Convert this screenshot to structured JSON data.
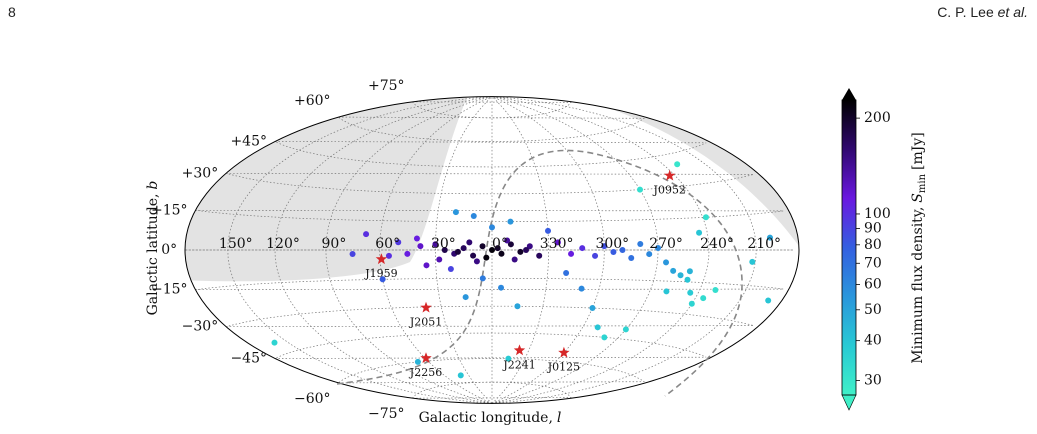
{
  "header": {
    "page": "8",
    "author": "C. P. Lee",
    "author_suffix": "et al."
  },
  "chart_data": {
    "type": "scatter",
    "projection": "hammer",
    "xlabel": "Galactic longitude,",
    "xlabel_symbol": "l",
    "ylabel": "Galactic latitude,",
    "ylabel_symbol": "b",
    "grid": true,
    "xticks": [
      {
        "value": 150,
        "label": "150°"
      },
      {
        "value": 120,
        "label": "120°"
      },
      {
        "value": 90,
        "label": "90°"
      },
      {
        "value": 60,
        "label": "60°"
      },
      {
        "value": 30,
        "label": "30°"
      },
      {
        "value": 0,
        "label": "0°"
      },
      {
        "value": 330,
        "label": "330°"
      },
      {
        "value": 300,
        "label": "300°"
      },
      {
        "value": 270,
        "label": "270°"
      },
      {
        "value": 240,
        "label": "240°"
      },
      {
        "value": 210,
        "label": "210°"
      }
    ],
    "yticks": [
      {
        "value": 75,
        "label": "+75°"
      },
      {
        "value": 60,
        "label": "+60°"
      },
      {
        "value": 45,
        "label": "+45°"
      },
      {
        "value": 30,
        "label": "+30°"
      },
      {
        "value": 15,
        "label": "+15°"
      },
      {
        "value": 0,
        "label": "0°"
      },
      {
        "value": -15,
        "label": "−15°"
      },
      {
        "value": -30,
        "label": "−30°"
      },
      {
        "value": -45,
        "label": "−45°"
      },
      {
        "value": -60,
        "label": "−60°"
      },
      {
        "value": -75,
        "label": "−75°"
      }
    ],
    "x": [
      0,
      5,
      355,
      10,
      350,
      15,
      345,
      20,
      340,
      25,
      335,
      8,
      352,
      30,
      3,
      357,
      12,
      348,
      18,
      342,
      28,
      38,
      45,
      50,
      55,
      325,
      318,
      312,
      305,
      300,
      295,
      290,
      285,
      280,
      275,
      270,
      265,
      260,
      255,
      250,
      245,
      240,
      235,
      230,
      40,
      35,
      22,
      0,
      350,
      10,
      5,
      355,
      15,
      345,
      20,
      330,
      320,
      310,
      300,
      290,
      280,
      270,
      260,
      250,
      245,
      238,
      230,
      270,
      212,
      200,
      190,
      70,
      60,
      75,
      68,
      160,
      40,
      345
    ],
    "values": [
      0,
      2,
      -2,
      -3,
      3,
      1,
      -1,
      -2,
      2,
      0,
      -3,
      -6,
      5,
      3,
      -4,
      1,
      4,
      -5,
      -1,
      0,
      -5,
      2,
      -2,
      4,
      -3,
      4,
      -2,
      1,
      -3,
      2,
      -1,
      0,
      -4,
      3,
      -2,
      1,
      -6,
      -10,
      -12,
      -14,
      -20,
      -25,
      -22,
      -18,
      6,
      -8,
      -10,
      12,
      15,
      18,
      -15,
      -20,
      -25,
      -30,
      20,
      10,
      -12,
      -20,
      -30,
      -40,
      -45,
      -40,
      -20,
      -10,
      8,
      15,
      40,
      30,
      -5,
      5,
      -20,
      -60,
      -15,
      -2,
      8,
      -40,
      -70,
      -60
    ],
    "color_values": [
      220,
      200,
      210,
      180,
      190,
      170,
      200,
      160,
      150,
      180,
      170,
      150,
      140,
      140,
      220,
      200,
      160,
      150,
      190,
      170,
      130,
      120,
      110,
      95,
      100,
      120,
      110,
      100,
      90,
      85,
      80,
      75,
      70,
      65,
      60,
      60,
      55,
      50,
      45,
      40,
      38,
      35,
      33,
      32,
      110,
      120,
      90,
      60,
      55,
      60,
      65,
      60,
      55,
      50,
      55,
      80,
      70,
      60,
      50,
      40,
      35,
      35,
      40,
      45,
      40,
      32,
      30,
      32,
      40,
      50,
      40,
      45,
      80,
      90,
      100,
      35,
      40,
      38
    ],
    "colorbar": {
      "label": "Minimum flux density,",
      "symbol": "S",
      "subscript": "min",
      "unit": "[mJy]",
      "scale": "log",
      "lim": [
        27,
        228
      ],
      "ticks": [
        200,
        100,
        90,
        80,
        70,
        60,
        50,
        40,
        30
      ],
      "colors": [
        "#40f0c8",
        "#28cad4",
        "#2a96dc",
        "#345fe0",
        "#6a18e0",
        "#300870",
        "#000000"
      ]
    },
    "markers": {
      "color": "#d62728",
      "names": [
        "J0952",
        "J1959",
        "J2051",
        "J2256",
        "J2241",
        "J0125"
      ],
      "x": [
        243.65,
        59.2,
        39.2,
        59.2,
        337.5,
        300
      ],
      "values": [
        35.4,
        -4.7,
        -30.4,
        -58.3,
        -54.9,
        -55
      ]
    }
  }
}
